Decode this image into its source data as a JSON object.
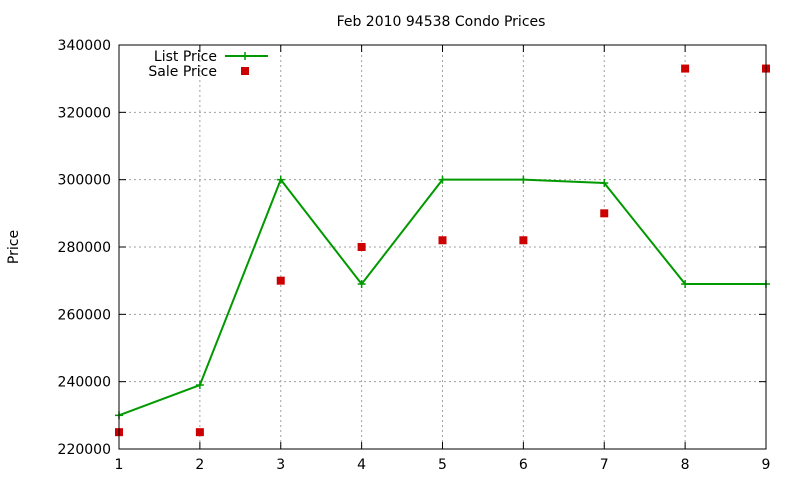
{
  "chart_data": {
    "type": "line",
    "title": "Feb 2010 94538 Condo Prices",
    "xlabel": "",
    "ylabel": "Price",
    "x": [
      1,
      2,
      3,
      4,
      5,
      6,
      7,
      8,
      9
    ],
    "xlim": [
      1,
      9
    ],
    "ylim": [
      220000,
      340000
    ],
    "yticks": [
      220000,
      240000,
      260000,
      280000,
      300000,
      320000,
      340000
    ],
    "xticks": [
      1,
      2,
      3,
      4,
      5,
      6,
      7,
      8,
      9
    ],
    "grid": true,
    "legend_position": "top-left",
    "series": [
      {
        "name": "List Price",
        "style": "line+cross",
        "color": "#009900",
        "values": [
          230000,
          239000,
          300000,
          269000,
          300000,
          300000,
          299000,
          269000,
          269000
        ]
      },
      {
        "name": "Sale Price",
        "style": "square-points",
        "color": "#cc0000",
        "values": [
          225000,
          225000,
          270000,
          280000,
          282000,
          282000,
          290000,
          333000,
          333000
        ]
      }
    ]
  }
}
